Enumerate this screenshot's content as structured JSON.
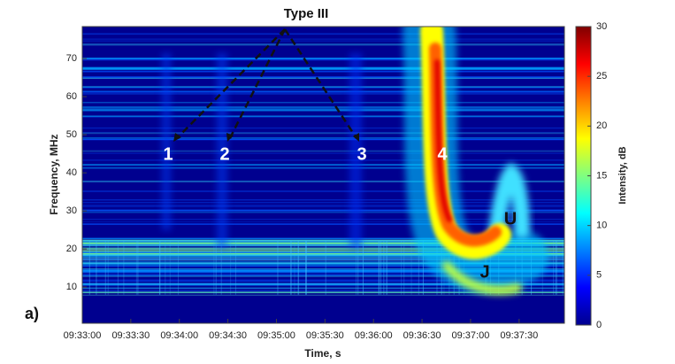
{
  "chart_data": {
    "type": "spectrogram",
    "xlabel": "Time, s",
    "ylabel": "Frequency, MHz",
    "colorbar_label": "Intensity, dB",
    "xlim": [
      34380,
      34678
    ],
    "xticks": [
      {
        "value": 34380,
        "label": "09:33:00"
      },
      {
        "value": 34410,
        "label": "09:33:30"
      },
      {
        "value": 34440,
        "label": "09:34:00"
      },
      {
        "value": 34470,
        "label": "09:34:30"
      },
      {
        "value": 34500,
        "label": "09:35:00"
      },
      {
        "value": 34530,
        "label": "09:35:30"
      },
      {
        "value": 34560,
        "label": "09:36:00"
      },
      {
        "value": 34590,
        "label": "09:36:30"
      },
      {
        "value": 34620,
        "label": "09:37:00"
      },
      {
        "value": 34650,
        "label": "09:37:30"
      }
    ],
    "ylim": [
      0.5,
      78.4
    ],
    "yticks": [
      10,
      20,
      30,
      40,
      50,
      60,
      70
    ],
    "clim": [
      0,
      30
    ],
    "cticks": [
      0,
      5,
      10,
      15,
      20,
      25,
      30
    ],
    "colormap": [
      "#00008f",
      "#0000ff",
      "#0080ff",
      "#00ffff",
      "#80ff80",
      "#ffff00",
      "#ff8000",
      "#ff0000",
      "#800000"
    ],
    "annotations": {
      "title": "Type III",
      "burst1": "1",
      "burst2": "2",
      "burst3": "3",
      "burst4": "4",
      "u": "U",
      "j": "J",
      "panel": "a)"
    }
  }
}
